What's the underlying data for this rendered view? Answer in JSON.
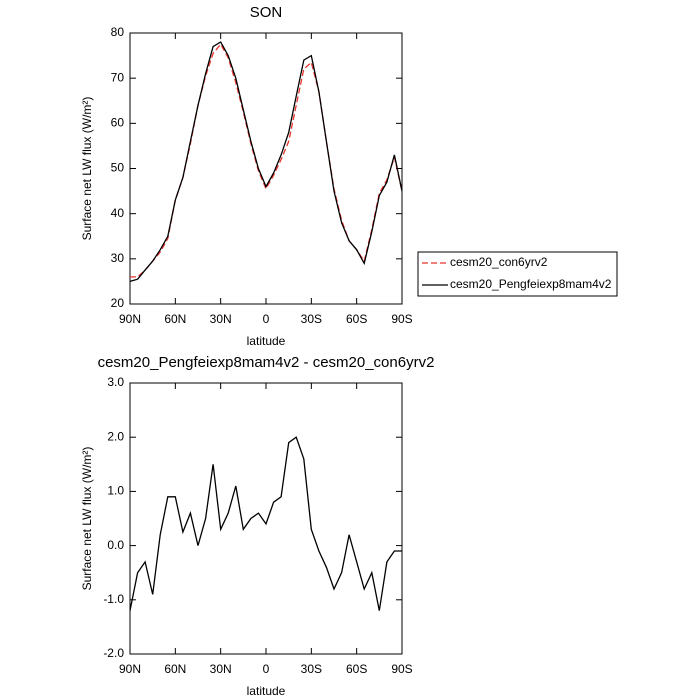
{
  "chart_data": [
    {
      "type": "line",
      "title": "SON",
      "x_label": "latitude",
      "y_label": "Surface net LW flux (W/m²)",
      "x": [
        90,
        85,
        80,
        75,
        70,
        65,
        60,
        55,
        50,
        45,
        40,
        35,
        30,
        25,
        20,
        15,
        10,
        5,
        0,
        -5,
        -10,
        -15,
        -20,
        -25,
        -30,
        -35,
        -40,
        -45,
        -50,
        -55,
        -60,
        -65,
        -70,
        -75,
        -80,
        -85,
        -90
      ],
      "xlim": [
        90,
        -90
      ],
      "xticks": [
        {
          "value": 90,
          "label": "90N"
        },
        {
          "value": 60,
          "label": "60N"
        },
        {
          "value": 30,
          "label": "30N"
        },
        0,
        {
          "value": -30,
          "label": "30S"
        },
        {
          "value": -60,
          "label": "60S"
        },
        {
          "value": -90,
          "label": "90S"
        }
      ],
      "ylim": [
        20,
        80
      ],
      "yticks": [
        20,
        30,
        40,
        50,
        60,
        70,
        80
      ],
      "legend": "right",
      "series": [
        {
          "name": "cesm20_con6yrv2",
          "color": "#e8352e",
          "dashed": true,
          "values": [
            26,
            26,
            27.5,
            29.5,
            31.5,
            34.5,
            43,
            48,
            55.5,
            64,
            70.5,
            75.5,
            77.5,
            74.5,
            69,
            62.5,
            55.5,
            49.5,
            45.5,
            48.5,
            52,
            56,
            64,
            72,
            73.5,
            67,
            56,
            45.5,
            38.5,
            34,
            32,
            29.5,
            36.5,
            44.5,
            47.5,
            52.5,
            45
          ]
        },
        {
          "name": "cesm20_Pengfeiexp8mam4v2",
          "color": "#000000",
          "dashed": false,
          "values": [
            25,
            25.5,
            27.5,
            29.5,
            32,
            35,
            43,
            48,
            56,
            64,
            71,
            77,
            78,
            75,
            70,
            63,
            56,
            50,
            46,
            49,
            53,
            58,
            66,
            74,
            75,
            67,
            56,
            45,
            38,
            34,
            32,
            29,
            36,
            44,
            47,
            53,
            45
          ]
        }
      ]
    },
    {
      "type": "line",
      "title": "cesm20_Pengfeiexp8mam4v2 - cesm20_con6yrv2",
      "x_label": "latitude",
      "y_label": "Surface net LW flux (W/m²)",
      "x": [
        90,
        85,
        80,
        75,
        70,
        65,
        60,
        55,
        50,
        45,
        40,
        35,
        30,
        25,
        20,
        15,
        10,
        5,
        0,
        -5,
        -10,
        -15,
        -20,
        -25,
        -30,
        -35,
        -40,
        -45,
        -50,
        -55,
        -60,
        -65,
        -70,
        -75,
        -80,
        -85,
        -90
      ],
      "xlim": [
        90,
        -90
      ],
      "xticks": [
        {
          "value": 90,
          "label": "90N"
        },
        {
          "value": 60,
          "label": "60N"
        },
        {
          "value": 30,
          "label": "30N"
        },
        0,
        {
          "value": -30,
          "label": "30S"
        },
        {
          "value": -60,
          "label": "60S"
        },
        {
          "value": -90,
          "label": "90S"
        }
      ],
      "ylim": [
        -2,
        3
      ],
      "yticks": [
        {
          "value": -2,
          "label": "-2.0"
        },
        {
          "value": -1,
          "label": "-1.0"
        },
        {
          "value": 0,
          "label": "0.0"
        },
        {
          "value": 1,
          "label": "1.0"
        },
        {
          "value": 2,
          "label": "2.0"
        },
        {
          "value": 3,
          "label": "3.0"
        }
      ],
      "color": "#000000",
      "values": [
        -1.2,
        -0.5,
        -0.3,
        -0.9,
        0.2,
        0.9,
        0.9,
        0.25,
        0.6,
        0.0,
        0.5,
        1.5,
        0.3,
        0.6,
        1.1,
        0.3,
        0.5,
        0.6,
        0.4,
        0.8,
        0.9,
        1.9,
        2.0,
        1.6,
        0.3,
        -0.1,
        -0.4,
        -0.8,
        -0.5,
        0.2,
        -0.3,
        -0.8,
        -0.5,
        -1.2,
        -0.3,
        -0.1,
        -0.1
      ]
    }
  ]
}
